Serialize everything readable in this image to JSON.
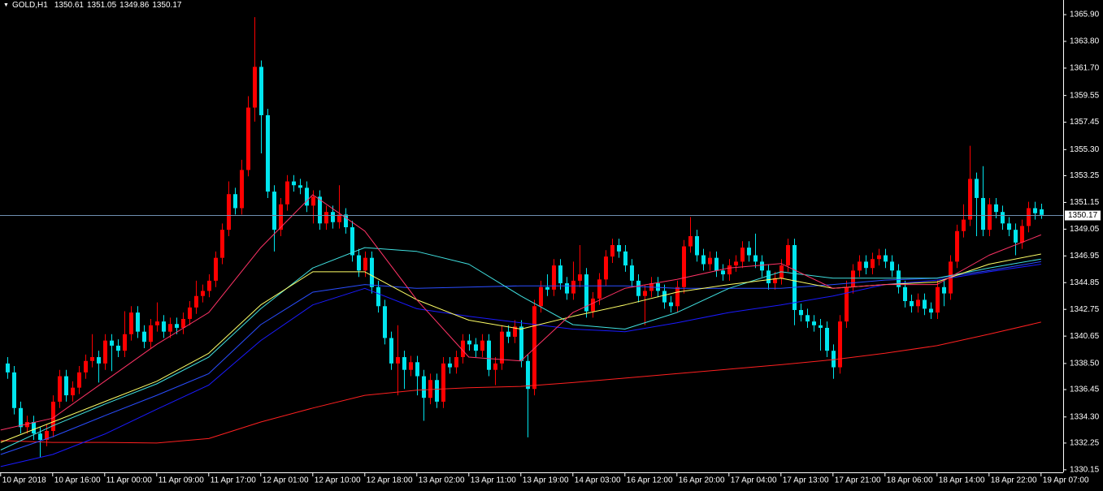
{
  "chart_data": {
    "type": "candlestick",
    "title": "GOLD,H1",
    "header_values": [
      1350.61,
      1351.05,
      1349.86,
      1350.17
    ],
    "last_price": 1350.17,
    "bull_color": "#ff0000",
    "bear_color": "#00e5ee",
    "ylim": [
      1329.95,
      1367.05
    ],
    "yticks": [
      {
        "value": 1365.9,
        "label": "1365.90"
      },
      {
        "value": 1363.8,
        "label": "1363.80"
      },
      {
        "value": 1361.7,
        "label": "1361.70"
      },
      {
        "value": 1359.55,
        "label": "1359.55"
      },
      {
        "value": 1357.45,
        "label": "1357.45"
      },
      {
        "value": 1355.3,
        "label": "1355.30"
      },
      {
        "value": 1353.25,
        "label": "1353.25"
      },
      {
        "value": 1351.15,
        "label": "1351.15"
      },
      {
        "value": 1349.05,
        "label": "1349.05"
      },
      {
        "value": 1346.95,
        "label": "1346.95"
      },
      {
        "value": 1344.85,
        "label": "1344.85"
      },
      {
        "value": 1342.75,
        "label": "1342.75"
      },
      {
        "value": 1340.65,
        "label": "1340.65"
      },
      {
        "value": 1338.5,
        "label": "1338.50"
      },
      {
        "value": 1336.45,
        "label": "1336.45"
      },
      {
        "value": 1334.3,
        "label": "1334.30"
      },
      {
        "value": 1332.25,
        "label": "1332.25"
      },
      {
        "value": 1330.15,
        "label": "1330.15"
      }
    ],
    "xlim": [
      -1.1,
      162.4
    ],
    "xticks": [
      {
        "value": -1,
        "label": "10 Apr 2018"
      },
      {
        "value": 7,
        "label": "10 Apr 16:00"
      },
      {
        "value": 15,
        "label": "11 Apr 00:00"
      },
      {
        "value": 23,
        "label": "11 Apr 09:00"
      },
      {
        "value": 31,
        "label": "11 Apr 17:00"
      },
      {
        "value": 39,
        "label": "12 Apr 01:00"
      },
      {
        "value": 47,
        "label": "12 Apr 10:00"
      },
      {
        "value": 55,
        "label": "12 Apr 18:00"
      },
      {
        "value": 63,
        "label": "13 Apr 02:00"
      },
      {
        "value": 71,
        "label": "13 Apr 11:00"
      },
      {
        "value": 79,
        "label": "13 Apr 19:00"
      },
      {
        "value": 87,
        "label": "14 Apr 03:00"
      },
      {
        "value": 95,
        "label": "16 Apr 12:00"
      },
      {
        "value": 103,
        "label": "16 Apr 20:00"
      },
      {
        "value": 111,
        "label": "17 Apr 04:00"
      },
      {
        "value": 119,
        "label": "17 Apr 13:00"
      },
      {
        "value": 127,
        "label": "17 Apr 21:00"
      },
      {
        "value": 135,
        "label": "18 Apr 06:00"
      },
      {
        "value": 143,
        "label": "18 Apr 14:00"
      },
      {
        "value": 151,
        "label": "18 Apr 22:00"
      },
      {
        "value": 159,
        "label": "19 Apr 07:00"
      }
    ],
    "open": [
      1338.5,
      1337.8,
      1335.0,
      1333.5,
      1333.9,
      1333.0,
      1332.5,
      1333.2,
      1335.5,
      1337.5,
      1336.0,
      1336.6,
      1337.8,
      1338.7,
      1339.0,
      1338.5,
      1340.3,
      1339.9,
      1339.5,
      1340.8,
      1342.5,
      1341.0,
      1340.2,
      1341.5,
      1341.8,
      1341.0,
      1341.6,
      1341.3,
      1342.0,
      1342.9,
      1343.8,
      1344.2,
      1345.0,
      1346.8,
      1349.0,
      1351.8,
      1350.7,
      1353.7,
      1358.6,
      1361.8,
      1358.0,
      1352.0,
      1349.0,
      1351.0,
      1352.8,
      1352.5,
      1352.3,
      1350.9,
      1351.6,
      1349.5,
      1350.4,
      1349.6,
      1350.2,
      1349.2,
      1347.0,
      1345.8,
      1346.8,
      1344.5,
      1343.0,
      1340.5,
      1338.5,
      1339.0,
      1338.0,
      1338.6,
      1337.5,
      1335.8,
      1337.2,
      1335.5,
      1338.5,
      1338.2,
      1339.0,
      1340.3,
      1340.0,
      1339.5,
      1340.3,
      1338.0,
      1338.5,
      1341.0,
      1340.6,
      1341.4,
      1338.7,
      1336.5,
      1343.0,
      1344.5,
      1344.3,
      1346.2,
      1344.8,
      1344.0,
      1345.0,
      1345.5,
      1342.6,
      1343.6,
      1345.1,
      1346.9,
      1347.8,
      1347.3,
      1346.2,
      1345.0,
      1343.8,
      1344.2,
      1344.8,
      1344.2,
      1343.3,
      1343.0,
      1344.5,
      1347.7,
      1348.5,
      1347.0,
      1346.3,
      1346.8,
      1345.8,
      1345.5,
      1346.2,
      1346.5,
      1347.6,
      1347.0,
      1346.5,
      1345.8,
      1344.8,
      1345.2,
      1346.2,
      1347.8,
      1342.7,
      1342.3,
      1341.8,
      1341.5,
      1341.3,
      1339.5,
      1338.2,
      1341.8,
      1344.5,
      1345.8,
      1346.5,
      1346.0,
      1346.7,
      1347.0,
      1346.5,
      1345.8,
      1344.5,
      1343.4,
      1343.0,
      1343.5,
      1342.8,
      1342.5,
      1344.5,
      1344.0,
      1346.5,
      1348.9,
      1349.8,
      1353.0,
      1351.5,
      1349.0,
      1351.0,
      1350.4,
      1349.5,
      1349.0,
      1348.0,
      1349.3,
      1350.7,
      1350.61
    ],
    "high": [
      1339.0,
      1338.3,
      1335.5,
      1334.4,
      1334.4,
      1333.5,
      1333.7,
      1336.0,
      1338.0,
      1338.0,
      1337.1,
      1338.3,
      1339.2,
      1340.8,
      1339.5,
      1340.8,
      1340.8,
      1340.4,
      1342.6,
      1343.0,
      1343.0,
      1341.5,
      1342.0,
      1343.3,
      1342.3,
      1342.1,
      1342.1,
      1342.5,
      1343.4,
      1345.0,
      1344.7,
      1345.5,
      1347.3,
      1349.5,
      1352.8,
      1352.3,
      1354.5,
      1359.5,
      1365.7,
      1362.3,
      1358.5,
      1352.5,
      1351.5,
      1353.3,
      1353.3,
      1353.0,
      1352.8,
      1352.1,
      1352.1,
      1350.9,
      1350.9,
      1352.5,
      1350.7,
      1349.7,
      1347.5,
      1347.3,
      1347.3,
      1345.0,
      1343.5,
      1341.0,
      1341.5,
      1339.5,
      1339.1,
      1339.1,
      1338.0,
      1337.7,
      1337.7,
      1339.0,
      1339.0,
      1339.5,
      1340.8,
      1340.8,
      1340.5,
      1340.8,
      1340.8,
      1339.0,
      1341.5,
      1341.5,
      1341.9,
      1341.9,
      1339.2,
      1343.5,
      1345.0,
      1345.5,
      1346.7,
      1346.7,
      1345.3,
      1346.5,
      1347.8,
      1346.0,
      1344.1,
      1345.6,
      1347.4,
      1348.3,
      1348.3,
      1347.8,
      1346.7,
      1345.5,
      1344.7,
      1345.3,
      1345.3,
      1344.7,
      1343.8,
      1345.0,
      1348.2,
      1350.0,
      1349.0,
      1347.5,
      1347.3,
      1347.3,
      1346.3,
      1346.7,
      1347.0,
      1348.1,
      1348.1,
      1348.7,
      1347.0,
      1346.3,
      1345.7,
      1346.7,
      1348.3,
      1348.3,
      1343.2,
      1342.8,
      1342.3,
      1342.0,
      1341.8,
      1340.0,
      1342.3,
      1345.0,
      1346.3,
      1347.0,
      1347.0,
      1347.2,
      1347.5,
      1347.5,
      1347.0,
      1346.3,
      1345.0,
      1343.9,
      1344.0,
      1344.0,
      1343.3,
      1345.0,
      1345.0,
      1347.0,
      1349.4,
      1351.0,
      1355.6,
      1353.5,
      1354.0,
      1351.5,
      1351.5,
      1350.9,
      1350.0,
      1349.5,
      1349.8,
      1351.2,
      1351.2,
      1351.05
    ],
    "low": [
      1337.3,
      1334.5,
      1333.0,
      1333.0,
      1332.5,
      1331.1,
      1332.0,
      1332.7,
      1335.0,
      1335.5,
      1335.5,
      1336.1,
      1337.3,
      1338.2,
      1337.0,
      1338.0,
      1337.9,
      1339.0,
      1339.0,
      1340.3,
      1340.5,
      1339.7,
      1339.7,
      1341.0,
      1340.5,
      1340.5,
      1340.8,
      1340.8,
      1341.5,
      1342.4,
      1343.3,
      1343.7,
      1344.5,
      1346.3,
      1348.5,
      1350.2,
      1350.2,
      1353.2,
      1357.5,
      1355.0,
      1351.5,
      1347.3,
      1348.5,
      1350.5,
      1352.0,
      1351.8,
      1350.4,
      1349.5,
      1349.0,
      1349.0,
      1349.1,
      1349.1,
      1348.7,
      1346.5,
      1345.3,
      1345.3,
      1344.0,
      1342.5,
      1340.0,
      1338.0,
      1336.0,
      1336.5,
      1337.5,
      1336.0,
      1334.0,
      1335.3,
      1335.0,
      1335.0,
      1337.7,
      1337.7,
      1338.5,
      1339.5,
      1339.0,
      1339.0,
      1337.5,
      1336.8,
      1338.0,
      1340.1,
      1340.1,
      1338.2,
      1332.7,
      1336.0,
      1342.5,
      1343.8,
      1343.8,
      1344.3,
      1343.5,
      1343.5,
      1344.5,
      1342.1,
      1342.1,
      1343.1,
      1344.6,
      1346.4,
      1346.8,
      1345.7,
      1344.5,
      1343.3,
      1341.5,
      1343.7,
      1343.7,
      1342.8,
      1342.5,
      1342.5,
      1344.0,
      1347.2,
      1346.5,
      1345.8,
      1345.8,
      1345.3,
      1345.0,
      1345.0,
      1345.7,
      1346.0,
      1346.5,
      1346.0,
      1345.3,
      1344.3,
      1344.3,
      1344.7,
      1345.7,
      1341.5,
      1341.8,
      1341.3,
      1341.0,
      1339.5,
      1339.0,
      1337.3,
      1337.7,
      1341.3,
      1344.0,
      1345.3,
      1345.5,
      1345.5,
      1346.2,
      1346.0,
      1345.3,
      1344.0,
      1342.9,
      1342.5,
      1342.5,
      1342.3,
      1342.0,
      1342.0,
      1343.0,
      1343.5,
      1346.0,
      1348.4,
      1349.3,
      1348.5,
      1348.5,
      1348.5,
      1349.9,
      1349.0,
      1348.5,
      1347.0,
      1347.5,
      1348.8,
      1349.8,
      1349.86
    ],
    "close": [
      1337.8,
      1335.0,
      1333.5,
      1333.9,
      1333.0,
      1332.5,
      1333.2,
      1335.5,
      1337.5,
      1336.0,
      1336.6,
      1337.8,
      1338.7,
      1339.0,
      1338.5,
      1340.3,
      1339.9,
      1339.5,
      1340.8,
      1342.5,
      1341.0,
      1340.2,
      1341.5,
      1341.8,
      1341.0,
      1341.6,
      1341.3,
      1342.0,
      1342.9,
      1343.8,
      1344.2,
      1345.0,
      1346.8,
      1349.0,
      1351.8,
      1350.7,
      1353.7,
      1358.6,
      1361.8,
      1358.0,
      1352.0,
      1349.0,
      1351.0,
      1352.8,
      1352.5,
      1352.3,
      1350.9,
      1351.6,
      1349.5,
      1350.4,
      1349.6,
      1350.2,
      1349.2,
      1347.0,
      1345.8,
      1346.8,
      1344.5,
      1343.0,
      1340.5,
      1338.5,
      1339.0,
      1338.0,
      1338.6,
      1337.5,
      1335.8,
      1337.2,
      1335.5,
      1338.5,
      1338.2,
      1339.0,
      1340.3,
      1340.0,
      1339.5,
      1340.3,
      1338.0,
      1338.5,
      1341.0,
      1340.6,
      1341.4,
      1338.7,
      1336.5,
      1343.0,
      1344.5,
      1344.3,
      1346.2,
      1344.8,
      1344.0,
      1345.0,
      1345.5,
      1342.6,
      1343.6,
      1345.1,
      1346.9,
      1347.8,
      1347.3,
      1346.2,
      1345.0,
      1343.8,
      1344.2,
      1344.8,
      1344.2,
      1343.3,
      1343.0,
      1344.5,
      1347.7,
      1348.5,
      1347.0,
      1346.3,
      1346.8,
      1345.8,
      1345.5,
      1346.2,
      1346.5,
      1347.6,
      1347.0,
      1346.5,
      1345.8,
      1344.8,
      1345.2,
      1346.2,
      1347.8,
      1342.7,
      1342.3,
      1341.8,
      1341.5,
      1341.3,
      1339.5,
      1338.2,
      1341.8,
      1344.5,
      1345.8,
      1346.5,
      1346.0,
      1346.7,
      1347.0,
      1346.5,
      1345.8,
      1344.5,
      1343.4,
      1343.0,
      1343.5,
      1342.8,
      1342.5,
      1344.5,
      1344.0,
      1346.5,
      1348.9,
      1349.8,
      1353.0,
      1351.5,
      1349.0,
      1351.0,
      1350.4,
      1349.5,
      1349.0,
      1348.0,
      1349.3,
      1350.7,
      1350.3,
      1350.17
    ],
    "ma_x": [
      -1,
      7,
      15,
      23,
      31,
      39,
      47,
      55,
      63,
      71,
      79,
      87,
      95,
      103,
      111,
      119,
      127,
      135,
      143,
      151,
      159
    ],
    "lines": [
      {
        "color": "#ff2020",
        "values": [
          1332.44,
          1332.3,
          1332.3,
          1332.25,
          1332.6,
          1333.9,
          1335.0,
          1336.0,
          1336.4,
          1336.6,
          1336.7,
          1337.0,
          1337.35,
          1337.7,
          1338.05,
          1338.4,
          1338.8,
          1339.3,
          1339.9,
          1340.8,
          1341.75
        ]
      },
      {
        "color": "#1a1aff",
        "values": [
          1330.4,
          1331.35,
          1332.95,
          1334.9,
          1336.8,
          1340.3,
          1343.1,
          1344.4,
          1342.8,
          1342.2,
          1341.7,
          1341.2,
          1341.0,
          1341.7,
          1342.5,
          1343.1,
          1343.8,
          1344.7,
          1345.05,
          1345.7,
          1346.3
        ]
      },
      {
        "color": "#2a4dff",
        "values": [
          1331.35,
          1332.75,
          1334.4,
          1336.0,
          1337.7,
          1341.55,
          1344.1,
          1344.7,
          1344.4,
          1344.5,
          1344.6,
          1344.6,
          1344.6,
          1344.4,
          1344.4,
          1344.4,
          1344.7,
          1345.05,
          1345.2,
          1345.8,
          1346.5
        ]
      },
      {
        "color": "#40e0e0",
        "values": [
          1331.7,
          1333.6,
          1335.3,
          1336.9,
          1339.0,
          1342.8,
          1346.0,
          1347.6,
          1347.3,
          1346.3,
          1343.8,
          1341.55,
          1341.2,
          1342.5,
          1344.4,
          1345.7,
          1345.2,
          1345.2,
          1345.2,
          1346.0,
          1346.7
        ]
      },
      {
        "color": "#ffff66",
        "values": [
          1332.3,
          1333.9,
          1335.5,
          1337.1,
          1339.3,
          1343.1,
          1345.7,
          1345.7,
          1343.5,
          1341.9,
          1341.2,
          1342.2,
          1343.1,
          1344.1,
          1344.7,
          1345.2,
          1344.4,
          1344.7,
          1344.9,
          1346.3,
          1347.1
        ]
      },
      {
        "color": "#ff3366",
        "values": [
          1333.27,
          1334.2,
          1337.1,
          1340.0,
          1342.5,
          1347.6,
          1351.75,
          1348.9,
          1343.5,
          1339.0,
          1338.7,
          1342.5,
          1344.4,
          1345.1,
          1346.0,
          1346.35,
          1344.4,
          1344.7,
          1344.7,
          1347.0,
          1348.6
        ]
      }
    ]
  }
}
